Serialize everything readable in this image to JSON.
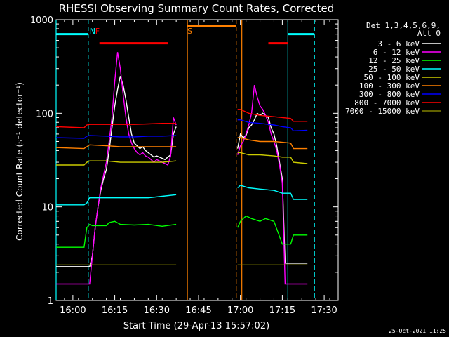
{
  "chart_data": {
    "type": "line",
    "title": "RHESSI Observing Summary Count Rates, Corrected",
    "xlabel": "Start Time (29-Apr-13 15:57:02)",
    "ylabel": "Corrected Count Rate (s⁻¹ detector⁻¹)",
    "ylog": true,
    "ylim": [
      1,
      1000
    ],
    "xlim_min": [
      -3,
      98
    ],
    "x_unit": "minutes since 15:57:02",
    "x_ticks": [
      {
        "v": 3,
        "label": "16:00"
      },
      {
        "v": 18,
        "label": "16:15"
      },
      {
        "v": 33,
        "label": "16:30"
      },
      {
        "v": 48,
        "label": "16:45"
      },
      {
        "v": 63,
        "label": "17:00"
      },
      {
        "v": 78,
        "label": "17:15"
      },
      {
        "v": 93,
        "label": "17:30"
      }
    ],
    "y_ticks": [
      {
        "v": 1,
        "label": "1"
      },
      {
        "v": 10,
        "label": "10"
      },
      {
        "v": 100,
        "label": "100"
      },
      {
        "v": 1000,
        "label": "1000"
      }
    ],
    "legend": {
      "header1": "Det 1,3,4,5,6,9,",
      "header2": "Att 0",
      "placement": "right"
    },
    "series": [
      {
        "name": "3 - 6 keV",
        "color": "#ffffff",
        "segments": [
          [
            [
              -3,
              2.3
            ],
            [
              5,
              2.3
            ],
            [
              9,
              2.3
            ],
            [
              10,
              3
            ],
            [
              11,
              6
            ],
            [
              12,
              10
            ],
            [
              13,
              15
            ],
            [
              14,
              20
            ],
            [
              15,
              25
            ],
            [
              16,
              40
            ],
            [
              17,
              70
            ],
            [
              18,
              120
            ],
            [
              19,
              180
            ],
            [
              20,
              250
            ],
            [
              21,
              200
            ],
            [
              22,
              140
            ],
            [
              23,
              90
            ],
            [
              24,
              60
            ],
            [
              25,
              48
            ],
            [
              26,
              45
            ],
            [
              27,
              42
            ],
            [
              28,
              44
            ],
            [
              29,
              40
            ],
            [
              30,
              38
            ],
            [
              31,
              36
            ],
            [
              32,
              34
            ],
            [
              33,
              35
            ],
            [
              34,
              34
            ],
            [
              35,
              33
            ],
            [
              36,
              32
            ],
            [
              37,
              34
            ],
            [
              38,
              36
            ],
            [
              39,
              60
            ],
            [
              40,
              72
            ]
          ],
          [
            [
              62,
              42
            ],
            [
              63,
              60
            ],
            [
              64,
              55
            ],
            [
              65,
              58
            ],
            [
              66,
              70
            ],
            [
              67,
              75
            ],
            [
              68,
              85
            ],
            [
              69,
              100
            ],
            [
              70,
              95
            ],
            [
              71,
              100
            ],
            [
              72,
              95
            ],
            [
              73,
              90
            ],
            [
              74,
              70
            ],
            [
              75,
              60
            ],
            [
              76,
              45
            ],
            [
              77,
              30
            ],
            [
              78,
              20
            ],
            [
              79,
              2.5
            ],
            [
              80,
              2.5
            ],
            [
              85,
              2.5
            ],
            [
              87,
              2.5
            ]
          ]
        ]
      },
      {
        "name": "6 - 12 keV",
        "color": "#ff00ff",
        "segments": [
          [
            [
              -3,
              1.5
            ],
            [
              5,
              1.5
            ],
            [
              9,
              1.5
            ],
            [
              10,
              3
            ],
            [
              11,
              6
            ],
            [
              12,
              10
            ],
            [
              13,
              16
            ],
            [
              14,
              22
            ],
            [
              15,
              30
            ],
            [
              16,
              50
            ],
            [
              17,
              90
            ],
            [
              18,
              220
            ],
            [
              19,
              450
            ],
            [
              20,
              300
            ],
            [
              21,
              160
            ],
            [
              22,
              90
            ],
            [
              23,
              60
            ],
            [
              24,
              48
            ],
            [
              25,
              42
            ],
            [
              26,
              38
            ],
            [
              27,
              36
            ],
            [
              28,
              38
            ],
            [
              29,
              35
            ],
            [
              30,
              34
            ],
            [
              31,
              32
            ],
            [
              32,
              30
            ],
            [
              33,
              32
            ],
            [
              34,
              31
            ],
            [
              35,
              30
            ],
            [
              36,
              29
            ],
            [
              37,
              28
            ],
            [
              38,
              35
            ],
            [
              39,
              90
            ],
            [
              40,
              75
            ]
          ],
          [
            [
              62,
              36
            ],
            [
              63,
              45
            ],
            [
              64,
              50
            ],
            [
              65,
              60
            ],
            [
              66,
              75
            ],
            [
              67,
              100
            ],
            [
              68,
              200
            ],
            [
              69,
              150
            ],
            [
              70,
              120
            ],
            [
              71,
              110
            ],
            [
              72,
              95
            ],
            [
              73,
              80
            ],
            [
              74,
              60
            ],
            [
              75,
              50
            ],
            [
              76,
              40
            ],
            [
              77,
              28
            ],
            [
              78,
              18
            ],
            [
              79,
              1.5
            ],
            [
              87,
              1.5
            ]
          ]
        ]
      },
      {
        "name": "12 - 25 keV",
        "color": "#00ff00",
        "segments": [
          [
            [
              -3,
              3.7
            ],
            [
              5,
              3.7
            ],
            [
              7,
              3.7
            ],
            [
              8,
              6
            ],
            [
              9,
              6.5
            ],
            [
              10,
              6.3
            ],
            [
              15,
              6.3
            ],
            [
              16,
              6.8
            ],
            [
              18,
              7
            ],
            [
              20,
              6.5
            ],
            [
              25,
              6.4
            ],
            [
              30,
              6.5
            ],
            [
              35,
              6.2
            ],
            [
              40,
              6.5
            ]
          ],
          [
            [
              62,
              6
            ],
            [
              63,
              7
            ],
            [
              65,
              8
            ],
            [
              67,
              7.5
            ],
            [
              70,
              7
            ],
            [
              72,
              7.5
            ],
            [
              75,
              7
            ],
            [
              78,
              4
            ],
            [
              81,
              4
            ],
            [
              82,
              5
            ],
            [
              85,
              5
            ],
            [
              87,
              5
            ]
          ]
        ]
      },
      {
        "name": "25 - 50 keV",
        "color": "#00ffff",
        "segments": [
          [
            [
              -3,
              10.5
            ],
            [
              7,
              10.5
            ],
            [
              8,
              11
            ],
            [
              9,
              12.5
            ],
            [
              15,
              12.5
            ],
            [
              20,
              12.5
            ],
            [
              25,
              12.5
            ],
            [
              30,
              12.5
            ],
            [
              35,
              13
            ],
            [
              40,
              13.5
            ]
          ],
          [
            [
              62,
              16
            ],
            [
              63,
              17
            ],
            [
              66,
              16
            ],
            [
              70,
              15.5
            ],
            [
              75,
              15
            ],
            [
              78,
              14
            ],
            [
              81,
              14
            ],
            [
              82,
              12
            ],
            [
              87,
              12
            ]
          ]
        ]
      },
      {
        "name": "50 - 100 keV",
        "color": "#cccc00",
        "segments": [
          [
            [
              -3,
              28
            ],
            [
              7,
              28
            ],
            [
              8,
              30
            ],
            [
              9,
              31
            ],
            [
              15,
              31
            ],
            [
              20,
              30
            ],
            [
              25,
              30
            ],
            [
              30,
              30
            ],
            [
              35,
              30
            ],
            [
              40,
              31
            ]
          ],
          [
            [
              62,
              38
            ],
            [
              63,
              38
            ],
            [
              66,
              36
            ],
            [
              70,
              36
            ],
            [
              75,
              35
            ],
            [
              78,
              34
            ],
            [
              81,
              34
            ],
            [
              82,
              30
            ],
            [
              87,
              29
            ]
          ]
        ]
      },
      {
        "name": "100 - 300 keV",
        "color": "#ff8000",
        "segments": [
          [
            [
              -3,
              43
            ],
            [
              7,
              42
            ],
            [
              8,
              44
            ],
            [
              9,
              46
            ],
            [
              15,
              45
            ],
            [
              20,
              44
            ],
            [
              25,
              44
            ],
            [
              30,
              44
            ],
            [
              35,
              44
            ],
            [
              40,
              44
            ]
          ],
          [
            [
              62,
              55
            ],
            [
              63,
              55
            ],
            [
              66,
              52
            ],
            [
              70,
              50
            ],
            [
              75,
              50
            ],
            [
              78,
              49
            ],
            [
              81,
              48
            ],
            [
              82,
              42
            ],
            [
              87,
              42
            ]
          ]
        ]
      },
      {
        "name": "300 - 800 keV",
        "color": "#0000ff",
        "segments": [
          [
            [
              -3,
              55
            ],
            [
              7,
              54
            ],
            [
              8,
              57
            ],
            [
              9,
              58
            ],
            [
              15,
              57
            ],
            [
              20,
              56
            ],
            [
              25,
              56
            ],
            [
              30,
              57
            ],
            [
              35,
              57
            ],
            [
              40,
              58
            ]
          ],
          [
            [
              62,
              85
            ],
            [
              63,
              85
            ],
            [
              66,
              80
            ],
            [
              70,
              78
            ],
            [
              75,
              75
            ],
            [
              78,
              72
            ],
            [
              81,
              70
            ],
            [
              82,
              65
            ],
            [
              87,
              66
            ]
          ]
        ]
      },
      {
        "name": "800 - 7000 keV",
        "color": "#ff0000",
        "segments": [
          [
            [
              -3,
              72
            ],
            [
              7,
              70
            ],
            [
              8,
              75
            ],
            [
              9,
              76
            ],
            [
              15,
              76
            ],
            [
              20,
              76
            ],
            [
              25,
              76
            ],
            [
              30,
              77
            ],
            [
              35,
              78
            ],
            [
              40,
              78
            ]
          ],
          [
            [
              62,
              110
            ],
            [
              63,
              110
            ],
            [
              66,
              100
            ],
            [
              70,
              95
            ],
            [
              75,
              92
            ],
            [
              78,
              90
            ],
            [
              81,
              88
            ],
            [
              82,
              82
            ],
            [
              87,
              82
            ]
          ]
        ]
      },
      {
        "name": "7000 - 15000 keV",
        "color": "#808000",
        "segments": [
          [
            [
              -3,
              2.4
            ],
            [
              5,
              2.4
            ],
            [
              9,
              2.4
            ],
            [
              15,
              2.4
            ],
            [
              20,
              2.4
            ],
            [
              25,
              2.4
            ],
            [
              30,
              2.4
            ],
            [
              35,
              2.4
            ],
            [
              40,
              2.4
            ]
          ],
          [
            [
              62,
              2.4
            ],
            [
              70,
              2.4
            ],
            [
              78,
              2.4
            ],
            [
              81,
              2.4
            ],
            [
              87,
              2.4
            ]
          ]
        ]
      }
    ],
    "annotations": [
      {
        "label": "N",
        "x": 8.5,
        "color": "#00ffff"
      },
      {
        "label": "F",
        "x": 10.5,
        "color": "#ff0000"
      },
      {
        "label": "S",
        "x": 43.5,
        "color": "#ff8000"
      }
    ],
    "bands": [
      {
        "color": "#00ffff",
        "from": -3,
        "to": 8.5,
        "y": 700
      },
      {
        "color": "#ff0000",
        "from": 12.5,
        "to": 37,
        "y": 560
      },
      {
        "color": "#ff8000",
        "from": 44,
        "to": 61.5,
        "y": 860
      },
      {
        "color": "#ff0000",
        "from": 73,
        "to": 80,
        "y": 560
      },
      {
        "color": "#00ffff",
        "from": 80,
        "to": 89.5,
        "y": 700
      }
    ],
    "vlines": [
      {
        "x": -3,
        "color": "#00ffff",
        "dash": false
      },
      {
        "x": 8.5,
        "color": "#00ffff",
        "dash": true
      },
      {
        "x": 44,
        "color": "#ff8000",
        "dash": false
      },
      {
        "x": 61.5,
        "color": "#ff8000",
        "dash": true
      },
      {
        "x": 63.5,
        "color": "#ff8000",
        "dash": false
      },
      {
        "x": 80,
        "color": "#00ffff",
        "dash": false
      },
      {
        "x": 89.5,
        "color": "#00ffff",
        "dash": true
      }
    ]
  },
  "footer": {
    "timestamp": "25-Oct-2021 11:25"
  }
}
